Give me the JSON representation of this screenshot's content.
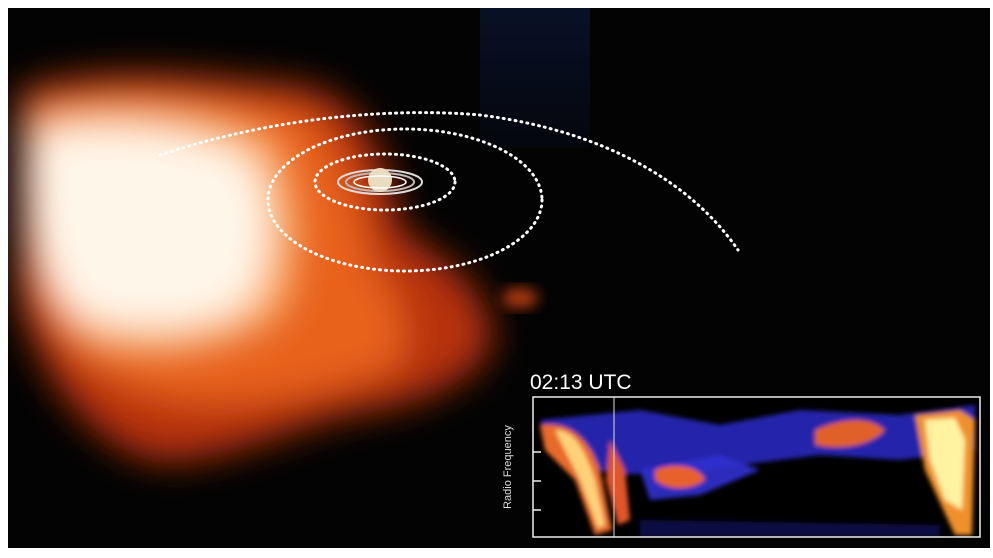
{
  "timestamp": "02:13 UTC",
  "spectrogram": {
    "y_label": "Radio Frequency"
  }
}
